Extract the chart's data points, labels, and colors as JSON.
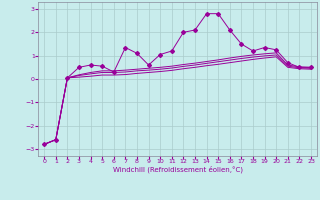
{
  "xlabel": "Windchill (Refroidissement éolien,°C)",
  "bg_color": "#c8ecec",
  "line_color": "#990099",
  "grid_color": "#aacccc",
  "xlim": [
    -0.5,
    23.5
  ],
  "ylim": [
    -3.3,
    3.3
  ],
  "yticks": [
    -3,
    -2,
    -1,
    0,
    1,
    2,
    3
  ],
  "xticks": [
    0,
    1,
    2,
    3,
    4,
    5,
    6,
    7,
    8,
    9,
    10,
    11,
    12,
    13,
    14,
    15,
    16,
    17,
    18,
    19,
    20,
    21,
    22,
    23
  ],
  "series1_x": [
    0,
    1,
    2,
    3,
    4,
    5,
    6,
    7,
    8,
    9,
    10,
    11,
    12,
    13,
    14,
    15,
    16,
    17,
    18,
    19,
    20,
    21,
    22,
    23
  ],
  "series1_y": [
    -2.8,
    -2.6,
    0.05,
    0.5,
    0.6,
    0.55,
    0.3,
    1.35,
    1.1,
    0.6,
    1.05,
    1.2,
    2.0,
    2.1,
    2.8,
    2.8,
    2.1,
    1.5,
    1.2,
    1.35,
    1.25,
    0.7,
    0.5,
    0.5
  ],
  "series2_x": [
    0,
    1,
    2,
    3,
    4,
    5,
    6,
    7,
    8,
    9,
    10,
    11,
    12,
    13,
    14,
    15,
    16,
    17,
    18,
    19,
    20,
    21,
    22,
    23
  ],
  "series2_y": [
    -2.8,
    -2.6,
    0.05,
    0.18,
    0.28,
    0.35,
    0.35,
    0.38,
    0.42,
    0.46,
    0.5,
    0.55,
    0.62,
    0.68,
    0.75,
    0.82,
    0.9,
    0.97,
    1.03,
    1.08,
    1.12,
    0.6,
    0.52,
    0.5
  ],
  "series3_x": [
    0,
    1,
    2,
    3,
    4,
    5,
    6,
    7,
    8,
    9,
    10,
    11,
    12,
    13,
    14,
    15,
    16,
    17,
    18,
    19,
    20,
    21,
    22,
    23
  ],
  "series3_y": [
    -2.8,
    -2.6,
    0.05,
    0.15,
    0.22,
    0.28,
    0.28,
    0.3,
    0.35,
    0.38,
    0.42,
    0.47,
    0.54,
    0.6,
    0.67,
    0.74,
    0.81,
    0.88,
    0.94,
    0.99,
    1.03,
    0.55,
    0.48,
    0.46
  ],
  "series4_x": [
    0,
    1,
    2,
    3,
    4,
    5,
    6,
    7,
    8,
    9,
    10,
    11,
    12,
    13,
    14,
    15,
    16,
    17,
    18,
    19,
    20,
    21,
    22,
    23
  ],
  "series4_y": [
    -2.8,
    -2.6,
    0.05,
    0.08,
    0.12,
    0.17,
    0.17,
    0.19,
    0.24,
    0.28,
    0.32,
    0.37,
    0.44,
    0.5,
    0.57,
    0.63,
    0.7,
    0.77,
    0.84,
    0.9,
    0.95,
    0.5,
    0.44,
    0.42
  ]
}
